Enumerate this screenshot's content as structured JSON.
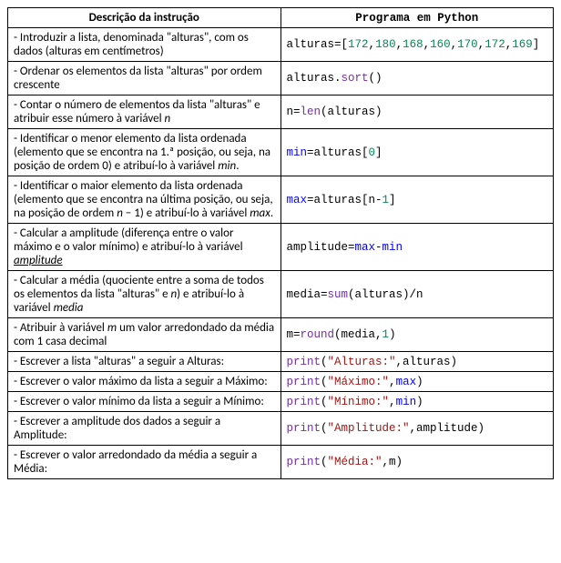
{
  "headers": {
    "desc": "Descrição da instrução",
    "code": "Programa em Python"
  },
  "rows": [
    {
      "desc": "- Introduzir a lista, denominada \"alturas\", com os dados (alturas em centímetros)",
      "code_parts": [
        {
          "t": "alturas",
          "c": "id"
        },
        {
          "t": "=[",
          "c": "op"
        },
        {
          "t": "172",
          "c": "num"
        },
        {
          "t": ",",
          "c": "op"
        },
        {
          "t": "180",
          "c": "num"
        },
        {
          "t": ",",
          "c": "op"
        },
        {
          "t": "168",
          "c": "num"
        },
        {
          "t": ",",
          "c": "op"
        },
        {
          "t": "160",
          "c": "num"
        },
        {
          "t": ",",
          "c": "op"
        },
        {
          "t": "170",
          "c": "num"
        },
        {
          "t": ",",
          "c": "op"
        },
        {
          "t": "172",
          "c": "num"
        },
        {
          "t": ",",
          "c": "op"
        },
        {
          "t": "169",
          "c": "num"
        },
        {
          "t": "]",
          "c": "op"
        }
      ]
    },
    {
      "desc": "- Ordenar os elementos da lista \"alturas\" por ordem crescente",
      "code_parts": [
        {
          "t": "alturas.",
          "c": "id"
        },
        {
          "t": "sort",
          "c": "fn"
        },
        {
          "t": "()",
          "c": "op"
        }
      ]
    },
    {
      "desc_html": "- Contar o número de elementos da lista \"alturas\" e atribuir esse número à variável <span class='italic'>n</span>",
      "code_parts": [
        {
          "t": "n=",
          "c": "id"
        },
        {
          "t": "len",
          "c": "fn"
        },
        {
          "t": "(alturas)",
          "c": "id"
        }
      ]
    },
    {
      "desc_html": "- Identificar o menor elemento da lista ordenada (elemento que se encontra na 1.ª posição, ou seja, na posição de ordem 0) e atribuí-lo à variável <span class='italic'>min</span>.",
      "code_parts": [
        {
          "t": "min",
          "c": "kw"
        },
        {
          "t": "=alturas[",
          "c": "id"
        },
        {
          "t": "0",
          "c": "num"
        },
        {
          "t": "]",
          "c": "id"
        }
      ]
    },
    {
      "desc_html": " - Identificar o maior elemento da lista ordenada (elemento que se encontra na última posição, ou seja, na posição de ordem <span class='italic'>n</span> − 1) e atribuí-lo à variável <span class='italic'>max</span>.",
      "code_parts": [
        {
          "t": "max",
          "c": "kw"
        },
        {
          "t": "=alturas[n-",
          "c": "id"
        },
        {
          "t": "1",
          "c": "num"
        },
        {
          "t": "]",
          "c": "id"
        }
      ]
    },
    {
      "desc_html": "- Calcular a amplitude (diferença entre o valor máximo e o valor mínimo) e atribuí-lo à variável <span class='italic underline'>amplitude</span>",
      "code_parts": [
        {
          "t": "amplitude=",
          "c": "id"
        },
        {
          "t": "max",
          "c": "kw"
        },
        {
          "t": "-",
          "c": "id"
        },
        {
          "t": "min",
          "c": "kw"
        }
      ]
    },
    {
      "desc_html": "- Calcular a média (quociente entre a soma de todos os elementos da lista \"alturas\" e <span class='italic'>n</span>) e atribuí-lo à variável <span class='italic'>media</span>",
      "code_parts": [
        {
          "t": "media=",
          "c": "id"
        },
        {
          "t": "sum",
          "c": "fn"
        },
        {
          "t": "(alturas)/n",
          "c": "id"
        }
      ]
    },
    {
      "desc_html": "- Atribuir à variável <span class='italic'>m</span> um valor arredondado da média com 1 casa decimal",
      "code_parts": [
        {
          "t": "m=",
          "c": "id"
        },
        {
          "t": "round",
          "c": "fn"
        },
        {
          "t": "(media,",
          "c": "id"
        },
        {
          "t": "1",
          "c": "num"
        },
        {
          "t": ")",
          "c": "id"
        }
      ]
    },
    {
      "desc": "- Escrever a lista \"alturas\" a seguir a Alturas:",
      "code_parts": [
        {
          "t": "print",
          "c": "fn"
        },
        {
          "t": "(",
          "c": "id"
        },
        {
          "t": "\"Alturas:\"",
          "c": "str"
        },
        {
          "t": ",alturas)",
          "c": "id"
        }
      ]
    },
    {
      "desc": "- Escrever o valor máximo da lista a seguir a Máximo:",
      "code_parts": [
        {
          "t": "print",
          "c": "fn"
        },
        {
          "t": "(",
          "c": "id"
        },
        {
          "t": "\"Máximo:\"",
          "c": "str"
        },
        {
          "t": ",",
          "c": "id"
        },
        {
          "t": "max",
          "c": "kw"
        },
        {
          "t": ")",
          "c": "id"
        }
      ]
    },
    {
      "desc": "- Escrever o valor mínimo da lista a seguir a Mínimo:",
      "code_parts": [
        {
          "t": "print",
          "c": "fn"
        },
        {
          "t": "(",
          "c": "id"
        },
        {
          "t": "\"Mínimo:\"",
          "c": "str"
        },
        {
          "t": ",",
          "c": "id"
        },
        {
          "t": "min",
          "c": "kw"
        },
        {
          "t": ")",
          "c": "id"
        }
      ]
    },
    {
      "desc": "- Escrever a amplitude dos dados a seguir a Amplitude:",
      "code_parts": [
        {
          "t": "print",
          "c": "fn"
        },
        {
          "t": "(",
          "c": "id"
        },
        {
          "t": "\"Amplitude:\"",
          "c": "str"
        },
        {
          "t": ",amplitude)",
          "c": "id"
        }
      ]
    },
    {
      "desc": "- Escrever o valor arredondado da média a seguir a Média:",
      "code_parts": [
        {
          "t": "print",
          "c": "fn"
        },
        {
          "t": "(",
          "c": "id"
        },
        {
          "t": "\"Média:\"",
          "c": "str"
        },
        {
          "t": ",m)",
          "c": "id"
        }
      ]
    }
  ]
}
